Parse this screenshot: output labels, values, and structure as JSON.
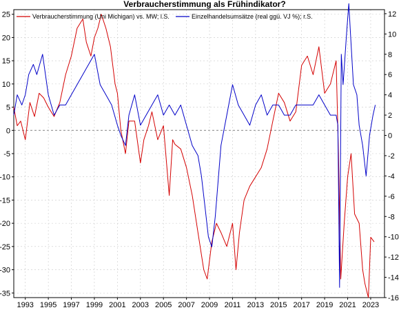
{
  "chart_data": {
    "type": "line",
    "title": "Verbraucherstimmung als Frühindikator?",
    "colors": {
      "left_series": "#d40000",
      "right_series": "#0000c8",
      "grid": "#c8c8c8",
      "zero_line": "#808080"
    },
    "grid": true,
    "legend_position": "top-left",
    "x_axis": {
      "range": [
        1992.0,
        2024.2
      ],
      "ticks": [
        1993,
        1995,
        1997,
        1999,
        2001,
        2003,
        2005,
        2007,
        2009,
        2011,
        2013,
        2015,
        2017,
        2019,
        2021,
        2023
      ],
      "tick_labels": [
        "1993",
        "1995",
        "1997",
        "1999",
        "2001",
        "2003",
        "2005",
        "2007",
        "2009",
        "2011",
        "2013",
        "2015",
        "2017",
        "2019",
        "2021",
        "2023"
      ]
    },
    "y_left": {
      "range": [
        -36,
        26
      ],
      "ticks": [
        25,
        20,
        15,
        10,
        5,
        0,
        -5,
        -10,
        -15,
        -20,
        -25,
        -30,
        -35
      ],
      "tick_labels": [
        "25",
        "20",
        "15",
        "10",
        "5",
        "0",
        "-5",
        "-10",
        "-15",
        "-20",
        "-25",
        "-30",
        "-35"
      ]
    },
    "y_right": {
      "range": [
        -16,
        12.4
      ],
      "ticks": [
        12,
        10,
        8,
        6,
        4,
        2,
        0,
        -2,
        -4,
        -6,
        -8,
        -10,
        -12,
        -14,
        -16
      ],
      "tick_labels": [
        "12",
        "10",
        "8",
        "6",
        "4",
        "2",
        "0",
        "-2",
        "-4",
        "-6",
        "-8",
        "-10",
        "-12",
        "-14",
        "-16"
      ]
    },
    "series": [
      {
        "name": "Verbraucherstimmung (Uni Michigan) vs. MW; l.S.",
        "axis": "left",
        "x": [
          1992.0,
          1992.3,
          1992.6,
          1993.0,
          1993.4,
          1993.8,
          1994.2,
          1994.6,
          1995.0,
          1995.5,
          1996.0,
          1996.5,
          1997.0,
          1997.5,
          1998.0,
          1998.3,
          1998.7,
          1999.0,
          1999.3,
          1999.6,
          2000.0,
          2000.4,
          2000.8,
          2001.0,
          2001.3,
          2001.7,
          2002.0,
          2002.5,
          2003.0,
          2003.3,
          2003.7,
          2004.0,
          2004.5,
          2005.0,
          2005.5,
          2005.8,
          2006.0,
          2006.5,
          2007.0,
          2007.5,
          2008.0,
          2008.5,
          2008.8,
          2009.2,
          2009.6,
          2010.0,
          2010.5,
          2011.0,
          2011.3,
          2011.6,
          2012.0,
          2012.5,
          2013.0,
          2013.5,
          2014.0,
          2014.5,
          2015.0,
          2015.5,
          2016.0,
          2016.5,
          2017.0,
          2017.5,
          2018.0,
          2018.5,
          2019.0,
          2019.5,
          2020.0,
          2020.2,
          2020.4,
          2020.7,
          2021.0,
          2021.3,
          2021.6,
          2022.0,
          2022.3,
          2022.5,
          2022.8,
          2023.0,
          2023.3
        ],
        "values": [
          5,
          1,
          2,
          -2,
          6,
          3,
          8,
          7,
          5,
          3,
          6,
          12,
          16,
          22,
          24,
          19,
          16,
          20,
          22,
          25,
          22,
          18,
          10,
          8,
          0,
          -5,
          2,
          2,
          -7,
          -2,
          1,
          4,
          -2,
          1,
          -14,
          -2,
          -3,
          -4,
          -8,
          -14,
          -22,
          -30,
          -32,
          -24,
          -20,
          -22,
          -25,
          -20,
          -30,
          -22,
          -15,
          -12,
          -10,
          -8,
          -4,
          2,
          8,
          6,
          2,
          4,
          14,
          16,
          12,
          18,
          8,
          10,
          15,
          -5,
          -32,
          -20,
          -10,
          -5,
          -18,
          -20,
          -30,
          -33,
          -36,
          -23,
          -24
        ]
      },
      {
        "name": "Einzelhandelsumsätze (real ggü. VJ %); r.S.",
        "axis": "right",
        "x": [
          1992.0,
          1992.3,
          1992.7,
          1993.0,
          1993.3,
          1993.7,
          1994.0,
          1994.5,
          1995.0,
          1995.5,
          1996.0,
          1996.5,
          1997.0,
          1997.5,
          1998.0,
          1998.5,
          1999.0,
          1999.5,
          2000.0,
          2000.5,
          2001.0,
          2001.3,
          2001.7,
          2002.0,
          2002.5,
          2003.0,
          2003.5,
          2004.0,
          2004.5,
          2005.0,
          2005.5,
          2006.0,
          2006.5,
          2007.0,
          2007.5,
          2008.0,
          2008.3,
          2008.6,
          2008.9,
          2009.2,
          2009.5,
          2010.0,
          2010.5,
          2011.0,
          2011.5,
          2012.0,
          2012.5,
          2013.0,
          2013.5,
          2014.0,
          2014.5,
          2015.0,
          2015.5,
          2016.0,
          2016.5,
          2017.0,
          2017.5,
          2018.0,
          2018.5,
          2019.0,
          2019.5,
          2020.0,
          2020.15,
          2020.3,
          2020.45,
          2020.6,
          2020.9,
          2021.1,
          2021.3,
          2021.5,
          2021.8,
          2022.0,
          2022.3,
          2022.6,
          2022.9,
          2023.2,
          2023.4
        ],
        "values": [
          2,
          4,
          3,
          4,
          6,
          7,
          6,
          8,
          4,
          2,
          3,
          3,
          4,
          5,
          6,
          7,
          8,
          5,
          4,
          3,
          1,
          0,
          -1,
          2,
          4,
          1,
          2,
          3,
          4,
          2,
          3,
          2,
          3,
          1,
          -1,
          -2,
          -4,
          -7,
          -10,
          -11,
          -8,
          -1,
          2,
          5,
          3,
          2,
          1,
          3,
          4,
          2,
          3,
          3,
          2,
          2,
          3,
          3,
          3,
          3,
          4,
          3,
          2,
          2,
          1,
          -15,
          8,
          5,
          10,
          13,
          9,
          5,
          4,
          1,
          -1,
          -4,
          0,
          2,
          3
        ]
      }
    ]
  }
}
